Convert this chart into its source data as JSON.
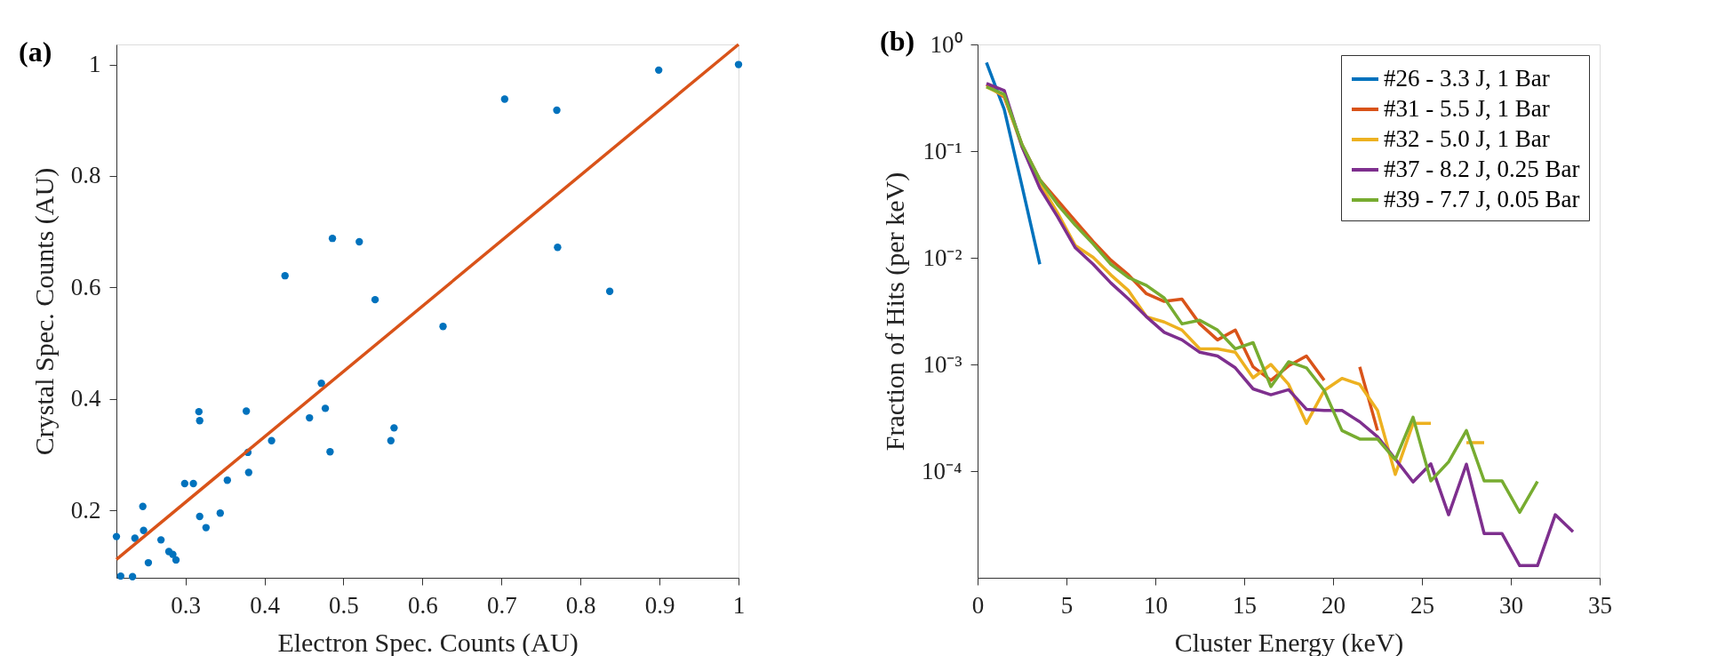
{
  "chart_data": [
    {
      "type": "scatter",
      "title": "(a)",
      "xlabel": "Electron Spec. Counts (AU)",
      "ylabel": "Crystal Spec. Counts (AU)",
      "xlim": [
        0.2126,
        1
      ],
      "ylim": [
        0.079,
        1.036
      ],
      "xticks": [
        0.3,
        0.4,
        0.5,
        0.6,
        0.7,
        0.8,
        0.9,
        1
      ],
      "yticks": [
        0.2,
        0.4,
        0.6,
        0.8,
        1
      ],
      "grid": false,
      "legend": false,
      "series": [
        {
          "type": "scatter",
          "marker": "circle",
          "color": "#0072bd",
          "x": [
            0.2126,
            0.218,
            0.233,
            0.236,
            0.246,
            0.247,
            0.253,
            0.269,
            0.279,
            0.284,
            0.288,
            0.299,
            0.31,
            0.317,
            0.318,
            0.318,
            0.326,
            0.344,
            0.353,
            0.377,
            0.379,
            0.38,
            0.409,
            0.426,
            0.457,
            0.472,
            0.477,
            0.483,
            0.486,
            0.52,
            0.54,
            0.56,
            0.564,
            0.626,
            0.704,
            0.77,
            0.771,
            0.837,
            0.899,
            1.0
          ],
          "values": [
            0.153,
            0.082,
            0.081,
            0.15,
            0.207,
            0.164,
            0.106,
            0.147,
            0.126,
            0.121,
            0.111,
            0.248,
            0.248,
            0.377,
            0.361,
            0.189,
            0.169,
            0.195,
            0.254,
            0.378,
            0.304,
            0.268,
            0.325,
            0.621,
            0.366,
            0.428,
            0.383,
            0.305,
            0.688,
            0.682,
            0.578,
            0.325,
            0.348,
            0.53,
            0.938,
            0.918,
            0.672,
            0.593,
            0.99,
            1.0
          ]
        },
        {
          "type": "line",
          "marker": "none",
          "color": "#d95319",
          "x": [
            0.2126,
            1
          ],
          "values": [
            0.112,
            1.036
          ]
        }
      ]
    },
    {
      "type": "line",
      "title": "(b)",
      "xlabel": "Cluster Energy (keV)",
      "ylabel": "Fraction of Hits (per keV)",
      "log": true,
      "xlim": [
        0,
        35
      ],
      "ylim": [
        1e-05,
        1
      ],
      "xticks": [
        0,
        5,
        10,
        15,
        20,
        25,
        30,
        35
      ],
      "yticks": [
        {
          "value": 1,
          "label": "10⁰"
        },
        {
          "value": 0.1,
          "label": "10⁻¹"
        },
        {
          "value": 0.01,
          "label": "10⁻²"
        },
        {
          "value": 0.001,
          "label": "10⁻³"
        },
        {
          "value": 0.0001,
          "label": "10⁻⁴"
        }
      ],
      "grid": false,
      "legend": "top right",
      "marker": "none",
      "line_style": "solid",
      "x": [
        0.5,
        1.5,
        2.5,
        3.5,
        4.5,
        5.5,
        6.5,
        7.5,
        8.5,
        9.5,
        10.5,
        11.5,
        12.5,
        13.5,
        14.5,
        15.5,
        16.5,
        17.5,
        18.5,
        19.5,
        20.5,
        21.5,
        22.5,
        23.5,
        24.5,
        25.5,
        26.5,
        27.5,
        28.5,
        29.5,
        30.5,
        31.5,
        32.5,
        33.5
      ],
      "series": [
        {
          "name": "#26 - 3.3 J, 1 Bar",
          "color": "#0072bd",
          "values": [
            0.675,
            0.246,
            0.047,
            0.0087,
            null,
            null,
            null,
            null,
            null,
            null,
            null,
            null,
            null,
            null,
            null,
            null,
            null,
            null,
            null,
            null,
            null,
            null,
            null,
            null,
            null,
            null,
            null,
            null,
            null,
            null,
            null,
            null,
            null,
            null
          ]
        },
        {
          "name": "#31 - 5.5 J, 1 Bar",
          "color": "#d95319",
          "values": [
            0.42,
            0.32,
            0.115,
            0.054,
            0.0346,
            0.0221,
            0.0142,
            0.0095,
            0.0069,
            0.0046,
            0.0039,
            0.0041,
            0.0024,
            0.0017,
            0.0021,
            0.00095,
            0.00071,
            0.00097,
            0.0012,
            0.00071,
            null,
            0.00095,
            0.00024,
            null,
            null,
            null,
            null,
            null,
            null,
            null,
            null,
            null,
            null,
            null
          ]
        },
        {
          "name": "#32 - 5.0 J, 1 Bar",
          "color": "#edb120",
          "values": [
            0.4,
            0.33,
            0.11,
            0.05,
            0.0264,
            0.013,
            0.0101,
            0.0069,
            0.0049,
            0.0028,
            0.0025,
            0.0021,
            0.0014,
            0.0014,
            0.0013,
            0.00075,
            0.001,
            0.00065,
            0.00028,
            0.00057,
            0.00074,
            0.00065,
            0.00037,
            9.3e-05,
            0.00028,
            0.00028,
            null,
            0.000185,
            0.000185,
            null,
            null,
            null,
            null,
            null
          ]
        },
        {
          "name": "#37 - 8.2 J, 0.25 Bar",
          "color": "#7e2f8e",
          "values": [
            0.43,
            0.37,
            0.11,
            0.045,
            0.0242,
            0.0124,
            0.0087,
            0.0058,
            0.0041,
            0.0028,
            0.002,
            0.0017,
            0.0013,
            0.0012,
            0.00093,
            0.00059,
            0.00052,
            0.00058,
            0.00038,
            0.00037,
            0.00037,
            0.00029,
            0.00021,
            0.00013,
            7.9e-05,
            0.000117,
            3.9e-05,
            0.000116,
            2.6e-05,
            2.6e-05,
            1.3e-05,
            1.3e-05,
            3.9e-05,
            2.7e-05
          ]
        },
        {
          "name": "#39 - 7.7 J, 0.05 Bar",
          "color": "#77ac30",
          "values": [
            0.4,
            0.34,
            0.115,
            0.054,
            0.0316,
            0.0202,
            0.0135,
            0.0087,
            0.0065,
            0.0055,
            0.0042,
            0.0024,
            0.0026,
            0.0021,
            0.0014,
            0.0016,
            0.00062,
            0.00106,
            0.00093,
            0.00057,
            0.00024,
            0.0002,
            0.0002,
            0.000128,
            0.00032,
            8.1e-05,
            0.000122,
            0.00024,
            8.1e-05,
            8.1e-05,
            4.1e-05,
            8e-05,
            null,
            null
          ]
        }
      ]
    }
  ]
}
